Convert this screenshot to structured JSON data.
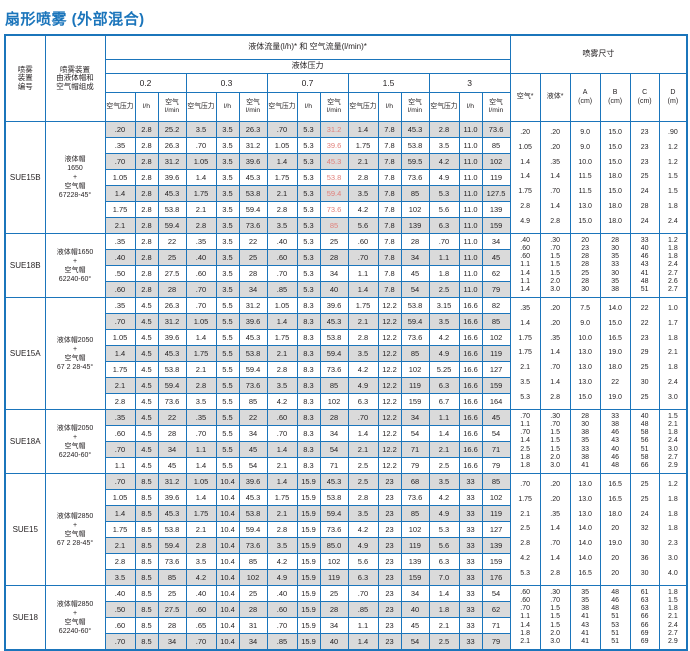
{
  "title": "扇形喷雾 (外部混合)",
  "colors": {
    "accent": "#1b75bb",
    "row_alt": "#dadada",
    "red_text": "#e0807b"
  },
  "table": {
    "header": {
      "device_no": "喷雾\n装置\n编号",
      "composition": "喷雾装置\n由液体帽和\n空气帽组成",
      "flow_title": "液体流量(l/h)* 和 空气流量(l/min)*",
      "pressure_title": "液体压力",
      "pressures": [
        "0.2",
        "0.3",
        "0.7",
        "1.5",
        "3"
      ],
      "sub": {
        "air_pressure": "空气压力",
        "lh": "l/h",
        "air_lmin": "空气\nl/min"
      },
      "dims_title": "喷雾尺寸",
      "dims_cols": [
        "空气*",
        "液体*",
        "A\n(cm)",
        "B\n(cm)",
        "C\n(cm)",
        "D\n(m)"
      ]
    },
    "groups": [
      {
        "id": "SUE15B",
        "cap": "液体帽\n1650\n+\n空气帽\n67228-45°",
        "red_col": 8,
        "rows": [
          [
            ".20",
            "2.8",
            "25.2",
            "3.5",
            "3.5",
            "26.3",
            ".70",
            "5.3",
            "31.2",
            "1.4",
            "7.8",
            "45.3",
            "2.8",
            "11.0",
            "73.6"
          ],
          [
            ".35",
            "2.8",
            "26.3",
            ".70",
            "3.5",
            "31.2",
            "1.05",
            "5.3",
            "39.6",
            "1.75",
            "7.8",
            "53.8",
            "3.5",
            "11.0",
            "85"
          ],
          [
            ".70",
            "2.8",
            "31.2",
            "1.05",
            "3.5",
            "39.6",
            "1.4",
            "5.3",
            "45.3",
            "2.1",
            "7.8",
            "59.5",
            "4.2",
            "11.0",
            "102"
          ],
          [
            "1.05",
            "2.8",
            "39.6",
            "1.4",
            "3.5",
            "45.3",
            "1.75",
            "5.3",
            "53.8",
            "2.8",
            "7.8",
            "73.6",
            "4.9",
            "11.0",
            "119"
          ],
          [
            "1.4",
            "2.8",
            "45.3",
            "1.75",
            "3.5",
            "53.8",
            "2.1",
            "5.3",
            "59.4",
            "3.5",
            "7.8",
            "85",
            "5.3",
            "11.0",
            "127.5"
          ],
          [
            "1.75",
            "2.8",
            "53.8",
            "2.1",
            "3.5",
            "59.4",
            "2.8",
            "5.3",
            "73.6",
            "4.2",
            "7.8",
            "102",
            "5.6",
            "11.0",
            "139"
          ],
          [
            "2.1",
            "2.8",
            "59.4",
            "2.8",
            "3.5",
            "73.6",
            "3.5",
            "5.3",
            "85",
            "5.6",
            "7.8",
            "139",
            "6.3",
            "11.0",
            "159"
          ]
        ],
        "dims": [
          [
            ".20",
            ".20",
            "9.0",
            "15.0",
            "23",
            ".90"
          ],
          [
            "1.05",
            ".20",
            "9.0",
            "15.0",
            "23",
            "1.2"
          ],
          [
            "1.4",
            ".35",
            "10.0",
            "15.0",
            "23",
            "1.2"
          ],
          [
            "1.4",
            "1.4",
            "11.5",
            "18.0",
            "25",
            "1.5"
          ],
          [
            "1.75",
            ".70",
            "11.5",
            "15.0",
            "24",
            "1.5"
          ],
          [
            "2.8",
            "1.4",
            "13.0",
            "18.0",
            "28",
            "1.8"
          ],
          [
            "4.9",
            "2.8",
            "15.0",
            "18.0",
            "24",
            "2.4"
          ]
        ]
      },
      {
        "id": "SUE18B",
        "cap": "液体帽1650\n+\n空气帽\n62240-60°",
        "red_col": null,
        "rows": [
          [
            ".35",
            "2.8",
            "22",
            ".35",
            "3.5",
            "22",
            ".40",
            "5.3",
            "25",
            ".60",
            "7.8",
            "28",
            ".70",
            "11.0",
            "34"
          ],
          [
            ".40",
            "2.8",
            "25",
            ".40",
            "3.5",
            "25",
            ".60",
            "5.3",
            "28",
            ".70",
            "7.8",
            "34",
            "1.1",
            "11.0",
            "45"
          ],
          [
            ".50",
            "2.8",
            "27.5",
            ".60",
            "3.5",
            "28",
            ".70",
            "5.3",
            "34",
            "1.1",
            "7.8",
            "45",
            "1.8",
            "11.0",
            "62"
          ],
          [
            ".60",
            "2.8",
            "28",
            ".70",
            "3.5",
            "34",
            ".85",
            "5.3",
            "40",
            "1.4",
            "7.8",
            "54",
            "2.5",
            "11.0",
            "79"
          ]
        ],
        "dims": [
          [
            ".40",
            ".30",
            "20",
            "28",
            "33",
            "1.2"
          ],
          [
            ".60",
            ".70",
            "23",
            "30",
            "40",
            "1.8"
          ],
          [
            ".60",
            "1.5",
            "28",
            "35",
            "46",
            "1.8"
          ],
          [
            "1.1",
            "1.5",
            "28",
            "33",
            "43",
            "2.4"
          ],
          [
            "1.4",
            "1.5",
            "25",
            "30",
            "41",
            "2.7"
          ],
          [
            "1.1",
            "2.0",
            "28",
            "35",
            "48",
            "2.6"
          ],
          [
            "1.4",
            "3.0",
            "30",
            "38",
            "51",
            "2.7"
          ]
        ]
      },
      {
        "id": "SUE15A",
        "cap": "液体帽2050\n+\n空气帽\n67 2 28-45°",
        "red_col": null,
        "rows": [
          [
            ".35",
            "4.5",
            "26.3",
            ".70",
            "5.5",
            "31.2",
            "1.05",
            "8.3",
            "39.6",
            "1.75",
            "12.2",
            "53.8",
            "3.15",
            "16.6",
            "82"
          ],
          [
            ".70",
            "4.5",
            "31.2",
            "1.05",
            "5.5",
            "39.6",
            "1.4",
            "8.3",
            "45.3",
            "2.1",
            "12.2",
            "59.4",
            "3.5",
            "16.6",
            "85"
          ],
          [
            "1.05",
            "4.5",
            "39.6",
            "1.4",
            "5.5",
            "45.3",
            "1.75",
            "8.3",
            "53.8",
            "2.8",
            "12.2",
            "73.6",
            "4.2",
            "16.6",
            "102"
          ],
          [
            "1.4",
            "4.5",
            "45.3",
            "1.75",
            "5.5",
            "53.8",
            "2.1",
            "8.3",
            "59.4",
            "3.5",
            "12.2",
            "85",
            "4.9",
            "16.6",
            "119"
          ],
          [
            "1.75",
            "4.5",
            "53.8",
            "2.1",
            "5.5",
            "59.4",
            "2.8",
            "8.3",
            "73.6",
            "4.2",
            "12.2",
            "102",
            "5.25",
            "16.6",
            "127"
          ],
          [
            "2.1",
            "4.5",
            "59.4",
            "2.8",
            "5.5",
            "73.6",
            "3.5",
            "8.3",
            "85",
            "4.9",
            "12.2",
            "119",
            "6.3",
            "16.6",
            "159"
          ],
          [
            "2.8",
            "4.5",
            "73.6",
            "3.5",
            "5.5",
            "85",
            "4.2",
            "8.3",
            "102",
            "6.3",
            "12.2",
            "159",
            "6.7",
            "16.6",
            "164"
          ]
        ],
        "dims": [
          [
            ".35",
            ".20",
            "7.5",
            "14.0",
            "22",
            "1.0"
          ],
          [
            "1.4",
            ".20",
            "9.0",
            "15.0",
            "22",
            "1.7"
          ],
          [
            "1.75",
            ".35",
            "10.0",
            "16.5",
            "23",
            "1.8"
          ],
          [
            "1.75",
            "1.4",
            "13.0",
            "19.0",
            "29",
            "2.1"
          ],
          [
            "2.1",
            ".70",
            "13.0",
            "18.0",
            "25",
            "1.8"
          ],
          [
            "3.5",
            "1.4",
            "13.0",
            "22",
            "30",
            "2.4"
          ],
          [
            "5.3",
            "2.8",
            "15.0",
            "19.0",
            "25",
            "3.0"
          ]
        ]
      },
      {
        "id": "SUE18A",
        "cap": "液体帽2050\n+\n空气帽\n62240-60°",
        "red_col": null,
        "rows": [
          [
            ".35",
            "4.5",
            "22",
            ".35",
            "5.5",
            "22",
            ".60",
            "8.3",
            "28",
            ".70",
            "12.2",
            "34",
            "1.1",
            "16.6",
            "45"
          ],
          [
            ".60",
            "4.5",
            "28",
            ".70",
            "5.5",
            "34",
            ".70",
            "8.3",
            "34",
            "1.4",
            "12.2",
            "54",
            "1.4",
            "16.6",
            "54"
          ],
          [
            ".70",
            "4.5",
            "34",
            "1.1",
            "5.5",
            "45",
            "1.4",
            "8.3",
            "54",
            "2.1",
            "12.2",
            "71",
            "2.1",
            "16.6",
            "71"
          ],
          [
            "1.1",
            "4.5",
            "45",
            "1.4",
            "5.5",
            "54",
            "2.1",
            "8.3",
            "71",
            "2.5",
            "12.2",
            "79",
            "2.5",
            "16.6",
            "79"
          ]
        ],
        "dims": [
          [
            ".70",
            ".30",
            "28",
            "33",
            "40",
            "1.5"
          ],
          [
            "1.1",
            ".70",
            "30",
            "38",
            "48",
            "2.1"
          ],
          [
            ".70",
            "1.5",
            "38",
            "46",
            "58",
            "1.8"
          ],
          [
            "1.4",
            "1.5",
            "35",
            "43",
            "56",
            "2.4"
          ],
          [
            "2.5",
            "1.5",
            "33",
            "40",
            "51",
            "3.0"
          ],
          [
            "1.8",
            "2.0",
            "38",
            "46",
            "58",
            "2.7"
          ],
          [
            "1.8",
            "3.0",
            "41",
            "48",
            "66",
            "2.9"
          ]
        ]
      },
      {
        "id": "SUE15",
        "cap": "液体帽2850\n+\n空气帽\n67 2 28-45°",
        "red_col": null,
        "rows": [
          [
            ".70",
            "8.5",
            "31.2",
            "1.05",
            "10.4",
            "39.6",
            "1.4",
            "15.9",
            "45.3",
            "2.5",
            "23",
            "68",
            "3.5",
            "33",
            "85"
          ],
          [
            "1.05",
            "8.5",
            "39.6",
            "1.4",
            "10.4",
            "45.3",
            "1.75",
            "15.9",
            "53.8",
            "2.8",
            "23",
            "73.6",
            "4.2",
            "33",
            "102"
          ],
          [
            "1.4",
            "8.5",
            "45.3",
            "1.75",
            "10.4",
            "53.8",
            "2.1",
            "15.9",
            "59.4",
            "3.5",
            "23",
            "85",
            "4.9",
            "33",
            "119"
          ],
          [
            "1.75",
            "8.5",
            "53.8",
            "2.1",
            "10.4",
            "59.4",
            "2.8",
            "15.9",
            "73.6",
            "4.2",
            "23",
            "102",
            "5.3",
            "33",
            "127"
          ],
          [
            "2.1",
            "8.5",
            "59.4",
            "2.8",
            "10.4",
            "73.6",
            "3.5",
            "15.9",
            "85.0",
            "4.9",
            "23",
            "119",
            "5.6",
            "33",
            "139"
          ],
          [
            "2.8",
            "8.5",
            "73.6",
            "3.5",
            "10.4",
            "85",
            "4.2",
            "15.9",
            "102",
            "5.6",
            "23",
            "139",
            "6.3",
            "33",
            "159"
          ],
          [
            "3.5",
            "8.5",
            "85",
            "4.2",
            "10.4",
            "102",
            "4.9",
            "15.9",
            "119",
            "6.3",
            "23",
            "159",
            "7.0",
            "33",
            "176"
          ]
        ],
        "dims": [
          [
            ".70",
            ".20",
            "13.0",
            "16.5",
            "25",
            "1.2"
          ],
          [
            "1.75",
            ".20",
            "13.0",
            "16.5",
            "25",
            "1.8"
          ],
          [
            "2.1",
            ".35",
            "13.0",
            "18.0",
            "24",
            "1.8"
          ],
          [
            "2.5",
            "1.4",
            "14.0",
            "20",
            "32",
            "1.8"
          ],
          [
            "2.8",
            ".70",
            "14.0",
            "19.0",
            "30",
            "2.3"
          ],
          [
            "4.2",
            "1.4",
            "14.0",
            "20",
            "36",
            "3.0"
          ],
          [
            "5.3",
            "2.8",
            "16.5",
            "20",
            "30",
            "4.0"
          ]
        ]
      },
      {
        "id": "SUE18",
        "cap": "液体帽2850\n+\n空气帽\n62240-60°",
        "red_col": null,
        "rows": [
          [
            ".40",
            "8.5",
            "25",
            ".40",
            "10.4",
            "25",
            ".40",
            "15.9",
            "25",
            ".70",
            "23",
            "34",
            "1.4",
            "33",
            "54"
          ],
          [
            ".50",
            "8.5",
            "27.5",
            ".60",
            "10.4",
            "28",
            ".60",
            "15.9",
            "28",
            ".85",
            "23",
            "40",
            "1.8",
            "33",
            "62"
          ],
          [
            ".60",
            "8.5",
            "28",
            ".65",
            "10.4",
            "31",
            ".70",
            "15.9",
            "34",
            "1.1",
            "23",
            "45",
            "2.1",
            "33",
            "71"
          ],
          [
            ".70",
            "8.5",
            "34",
            ".70",
            "10.4",
            "34",
            ".85",
            "15.9",
            "40",
            "1.4",
            "23",
            "54",
            "2.5",
            "33",
            "79"
          ]
        ],
        "dims": [
          [
            ".60",
            ".30",
            "35",
            "48",
            "61",
            "1.8"
          ],
          [
            ".60",
            ".70",
            "35",
            "46",
            "63",
            "1.5"
          ],
          [
            ".70",
            "1.5",
            "38",
            "48",
            "63",
            "1.8"
          ],
          [
            "1.1",
            "1.5",
            "41",
            "51",
            "66",
            "2.1"
          ],
          [
            "1.4",
            "1.5",
            "43",
            "53",
            "66",
            "2.4"
          ],
          [
            "1.8",
            "2.0",
            "41",
            "51",
            "69",
            "2.7"
          ],
          [
            "2.1",
            "3.0",
            "41",
            "51",
            "69",
            "2.9"
          ]
        ]
      }
    ]
  }
}
